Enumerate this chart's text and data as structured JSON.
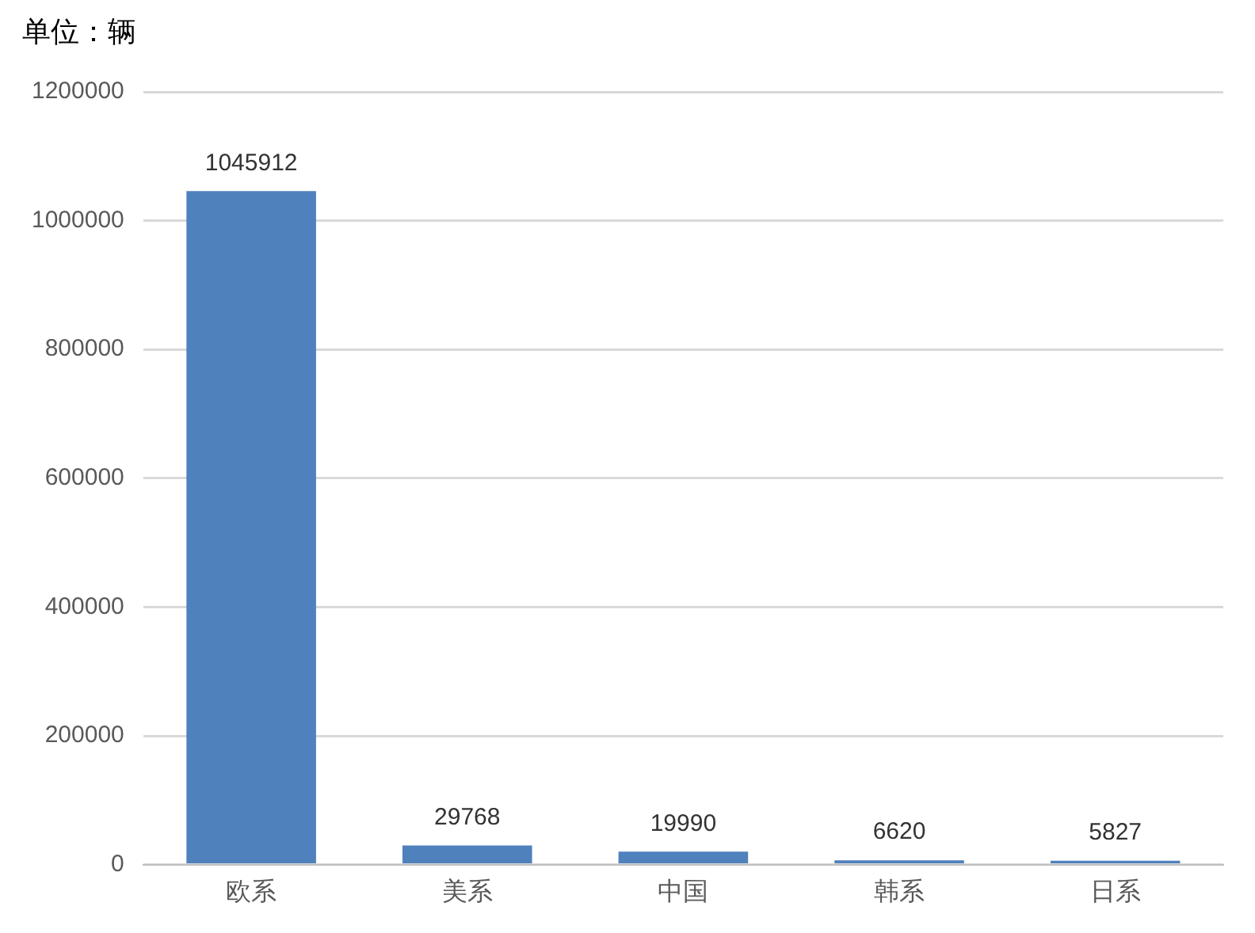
{
  "chart_data": {
    "type": "bar",
    "ylabel": "单位：辆",
    "categories": [
      "欧系",
      "美系",
      "中国",
      "韩系",
      "日系"
    ],
    "values": [
      1045912,
      29768,
      19990,
      6620,
      5827
    ],
    "color": "#4f81bd",
    "ylim": [
      0,
      1200000
    ],
    "yticks": [
      0,
      200000,
      400000,
      600000,
      800000,
      1000000,
      1200000
    ],
    "grid": "y",
    "data_labels": true,
    "legend": false
  }
}
